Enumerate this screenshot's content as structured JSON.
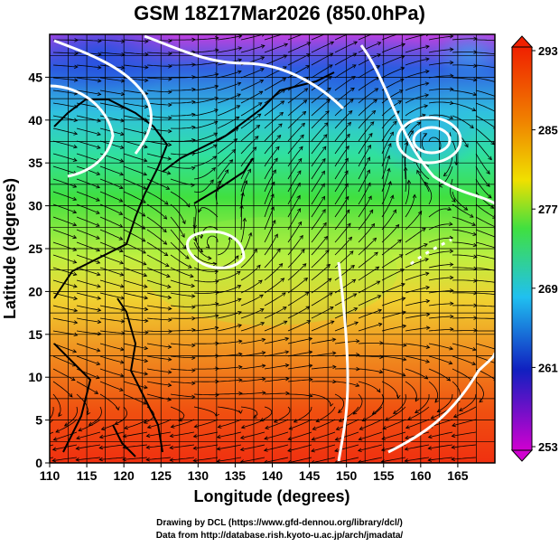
{
  "title": "GSM 18Z17Mar2026 (850.0hPa)",
  "xaxis": {
    "label": "Longitude (degrees)",
    "ticks": [
      "110",
      "115",
      "120",
      "125",
      "130",
      "135",
      "140",
      "145",
      "150",
      "155",
      "160",
      "165"
    ],
    "range": [
      110,
      170
    ]
  },
  "yaxis": {
    "label": "Latitude  (degrees)",
    "ticks": [
      "0",
      "5",
      "10",
      "15",
      "20",
      "25",
      "30",
      "35",
      "40",
      "45"
    ],
    "range": [
      0,
      50
    ]
  },
  "colorbar": {
    "labels": [
      "293",
      "285",
      "277",
      "269",
      "261",
      "253"
    ],
    "range": [
      253,
      293
    ],
    "colors": [
      "#d000d0",
      "#1020c0",
      "#20c0f0",
      "#40e040",
      "#f0e000",
      "#f08000",
      "#f02000"
    ]
  },
  "map_colors": {
    "warm": "#f03a10",
    "orange": "#f6a020",
    "yellow": "#f0f040",
    "green": "#40e040",
    "cyan": "#30e8c0",
    "blue": "#3070e0",
    "violet": "#b050e0"
  },
  "credits": {
    "line1": "Drawing by DCL (https://www.gfd-dennou.org/library/dcl/)",
    "line2": "Data from http://database.rish.kyoto-u.ac.jp/arch/jmadata/"
  }
}
